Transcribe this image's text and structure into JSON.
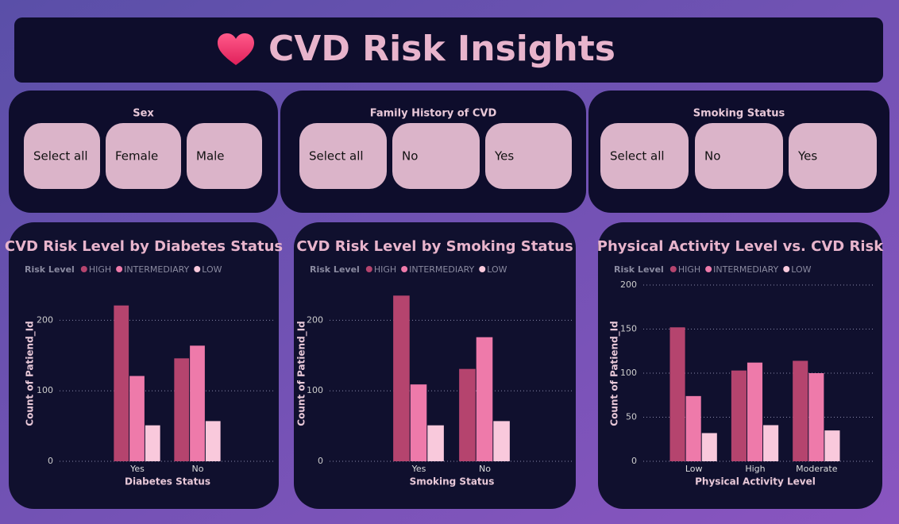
{
  "header": {
    "title": "CVD Risk Insights"
  },
  "slicers": [
    {
      "title": "Sex",
      "options": [
        "Select all",
        "Female",
        "Male"
      ]
    },
    {
      "title": "Family History of CVD",
      "options": [
        "Select all",
        "No",
        "Yes"
      ]
    },
    {
      "title": "Smoking Status",
      "options": [
        "Select all",
        "No",
        "Yes"
      ]
    }
  ],
  "chart_data": [
    {
      "type": "bar",
      "title": "CVD Risk Level by Diabetes Status",
      "legend_title": "Risk Level",
      "x_label": "Diabetes Status",
      "y_label": "Count of Patiend_Id",
      "categories": [
        "Yes",
        "No"
      ],
      "series": [
        {
          "name": "HIGH",
          "color": "#b5446e",
          "values": [
            221,
            146
          ]
        },
        {
          "name": "INTERMEDIARY",
          "color": "#ee7aaa",
          "values": [
            121,
            164
          ]
        },
        {
          "name": "LOW",
          "color": "#f9c9dc",
          "values": [
            51,
            57
          ]
        }
      ],
      "ylim": [
        0,
        250
      ],
      "yticks": [
        0,
        100,
        200
      ],
      "grid": true
    },
    {
      "type": "bar",
      "title": "CVD Risk Level by Smoking Status",
      "legend_title": "Risk Level",
      "x_label": "Smoking Status",
      "y_label": "Count of Patiend_Id",
      "categories": [
        "Yes",
        "No"
      ],
      "series": [
        {
          "name": "HIGH",
          "color": "#b5446e",
          "values": [
            235,
            131
          ]
        },
        {
          "name": "INTERMEDIARY",
          "color": "#ee7aaa",
          "values": [
            109,
            176
          ]
        },
        {
          "name": "LOW",
          "color": "#f9c9dc",
          "values": [
            51,
            57
          ]
        }
      ],
      "ylim": [
        0,
        250
      ],
      "yticks": [
        0,
        100,
        200
      ],
      "grid": true
    },
    {
      "type": "bar",
      "title": "Physical Activity Level vs. CVD Risk",
      "legend_title": "Risk Level",
      "x_label": "Physical Activity Level",
      "y_label": "Count of Patiend_Id",
      "categories": [
        "Low",
        "High",
        "Moderate"
      ],
      "series": [
        {
          "name": "HIGH",
          "color": "#b5446e",
          "values": [
            152,
            103,
            114
          ]
        },
        {
          "name": "INTERMEDIARY",
          "color": "#ee7aaa",
          "values": [
            74,
            112,
            100
          ]
        },
        {
          "name": "LOW",
          "color": "#f9c9dc",
          "values": [
            32,
            41,
            35
          ]
        }
      ],
      "ylim": [
        0,
        200
      ],
      "yticks": [
        0,
        50,
        100,
        150,
        200
      ],
      "grid": true
    }
  ]
}
